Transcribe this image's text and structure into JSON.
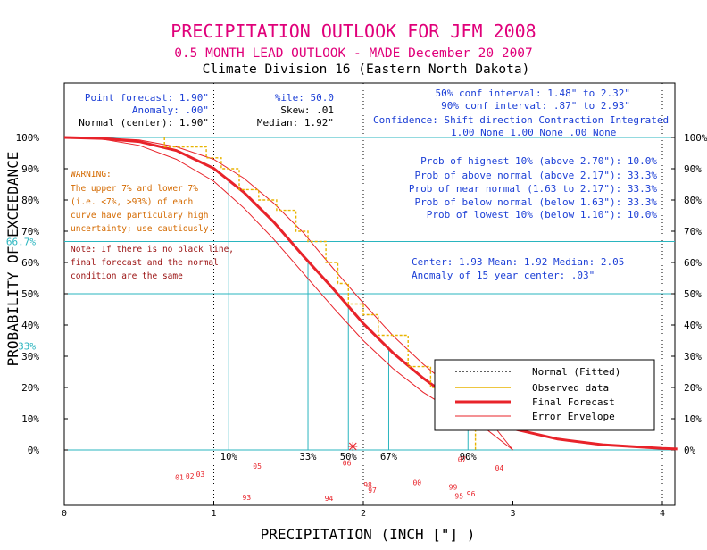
{
  "header": {
    "title": "PRECIPITATION OUTLOOK FOR JFM 2008",
    "subtitle": "0.5 MONTH LEAD OUTLOOK  - MADE December 20 2007",
    "division": "Climate Division 16 (Eastern North Dakota)"
  },
  "info": {
    "point_forecast": "Point forecast: 1.90\"",
    "anomaly": "Anomaly: .00\"",
    "normal_center": "Normal (center): 1.90\"",
    "ile": "%ile:  50.0",
    "skew": "Skew:    .01",
    "median": "Median: 1.92\"",
    "conf50": "50% conf interval: 1.48\" to 2.32\"",
    "conf90": "90% conf interval: .87\" to 2.93\"",
    "confidence_header": "Confidence: Shift direction   Contraction   Integrated",
    "confidence_values": "1.00 None          1.00 None      .00 None",
    "prob_highest": "Prob of highest 10% (above 2.70\"): 10.0%",
    "prob_above": "Prob of above normal (above 2.17\"): 33.3%",
    "prob_near": "Prob of near normal (1.63 to 2.17\"): 33.3%",
    "prob_below": "Prob of below normal (below 1.63\"): 33.3%",
    "prob_lowest": "Prob of lowest 10% (below 1.10\"): 10.0%",
    "center_line": "Center: 1.93  Mean: 1.92  Median: 2.05",
    "anomaly_center": "Anomaly of 15 year center:  .03\""
  },
  "warning": {
    "lines": [
      "WARNING:",
      "The upper 7% and lower 7%",
      "(i.e. <7%, >93%) of each",
      "curve have particulary high",
      "uncertainty; use cautiously."
    ]
  },
  "note": {
    "lines": [
      "Note: If there is no black line,",
      "final forecast and the normal",
      "condition are the same"
    ]
  },
  "legend": {
    "normal": "Normal (Fitted)",
    "observed": "Observed data",
    "final": "Final Forecast",
    "envelope": "Error Envelope"
  },
  "colors": {
    "title": "#e0007a",
    "info": "#1c3fd6",
    "warning": "#d46a00",
    "note": "#9a1010",
    "cyan": "#2ab5bf",
    "observed": "#e8b400",
    "forecast": "#e8232a",
    "envelope": "#e8232a",
    "years": "#e8232a"
  },
  "chart_data": {
    "type": "line",
    "xlabel": "PRECIPITATION (INCH [\"] )",
    "ylabel": "PROBABILITY OF EXCEEDANCE",
    "xlim": [
      0,
      4.1
    ],
    "ylim": [
      0,
      100
    ],
    "x_ticks": [
      0,
      1,
      2,
      3,
      4
    ],
    "y_ticks_left": [
      "0%",
      "10%",
      "20%",
      "30%",
      "40%",
      "50%",
      "60%",
      "70%",
      "80%",
      "90%",
      "100%"
    ],
    "y_ticks_right": [
      "0%",
      "10%",
      "20%",
      "30%",
      "40%",
      "50%",
      "60%",
      "70%",
      "80%",
      "90%",
      "100%"
    ],
    "special_y_labels": [
      {
        "label": "66.7%",
        "y": 66.7
      },
      {
        "label": "33%",
        "y": 33.3
      }
    ],
    "horizontal_ref_lines": [
      100,
      66.7,
      50,
      33.3,
      0
    ],
    "dotted_vertical_lines": [
      1,
      2,
      4
    ],
    "percentile_markers": [
      {
        "label": "10%",
        "x": 1.1
      },
      {
        "label": "33%",
        "x": 1.63
      },
      {
        "label": "50%",
        "x": 1.9
      },
      {
        "label": "67%",
        "x": 2.17
      },
      {
        "label": "90%",
        "x": 2.7
      }
    ],
    "median_star_x": 1.93,
    "series": [
      {
        "name": "Final Forecast",
        "x": [
          0,
          0.25,
          0.5,
          0.75,
          1.0,
          1.2,
          1.4,
          1.6,
          1.8,
          2.0,
          2.2,
          2.4,
          2.6,
          2.8,
          3.0,
          3.3,
          3.6,
          4.0,
          4.1
        ],
        "y": [
          100,
          99.7,
          98.7,
          95.8,
          90.1,
          82.5,
          73.0,
          62.0,
          51.5,
          40.5,
          31.0,
          23.0,
          16.0,
          10.5,
          6.8,
          3.5,
          1.7,
          0.5,
          0.3
        ]
      },
      {
        "name": "Error Envelope",
        "x": [
          0,
          0.25,
          0.5,
          0.75,
          1.0,
          1.2,
          1.4,
          1.6,
          1.8,
          2.0,
          2.2,
          2.4,
          2.6,
          2.8,
          3.0
        ],
        "y": [
          100,
          99.9,
          99.2,
          97.0,
          93.0,
          87.0,
          79.0,
          69.5,
          58.0,
          47.0,
          36.5,
          27.5,
          19.5,
          12.0,
          0
        ]
      },
      {
        "name": "Error Envelope",
        "x": [
          0,
          0.25,
          0.5,
          0.75,
          1.0,
          1.2,
          1.4,
          1.6,
          1.8,
          2.0,
          2.2,
          2.4,
          2.6,
          2.8,
          3.0
        ],
        "y": [
          100,
          99.5,
          97.5,
          93.0,
          86.0,
          77.5,
          67.5,
          56.5,
          45.5,
          35.0,
          26.0,
          18.5,
          12.5,
          7.5,
          0
        ]
      },
      {
        "name": "Observed data",
        "x": [
          0.67,
          0.67,
          0.95,
          0.95,
          1.05,
          1.05,
          1.17,
          1.17,
          1.3,
          1.3,
          1.42,
          1.42,
          1.55,
          1.55,
          1.63,
          1.63,
          1.75,
          1.75,
          1.83,
          1.83,
          1.9,
          1.9,
          2.0,
          2.0,
          2.1,
          2.1,
          2.3,
          2.3,
          2.45,
          2.45,
          2.55,
          2.55,
          2.62,
          2.62,
          2.7,
          2.7,
          2.75,
          2.75
        ],
        "y": [
          100,
          97,
          97,
          93.5,
          93.5,
          90,
          90,
          83.3,
          83.3,
          80,
          80,
          76.7,
          76.7,
          70,
          70,
          66.7,
          66.7,
          60,
          60,
          53.3,
          53.3,
          46.7,
          46.7,
          43.3,
          43.3,
          36.7,
          36.7,
          26.7,
          26.7,
          20,
          20,
          16.7,
          16.7,
          13.3,
          13.3,
          6.7,
          6.7,
          0
        ]
      }
    ],
    "year_labels": [
      {
        "label": "01",
        "x": 0.77,
        "y": -9.5
      },
      {
        "label": "02",
        "x": 0.84,
        "y": -9.2
      },
      {
        "label": "03",
        "x": 0.91,
        "y": -8.6
      },
      {
        "label": "05",
        "x": 1.29,
        "y": -6.0
      },
      {
        "label": "06",
        "x": 1.89,
        "y": -5.0
      },
      {
        "label": "07",
        "x": 2.66,
        "y": -3.8
      },
      {
        "label": "04",
        "x": 2.91,
        "y": -6.5
      },
      {
        "label": "98",
        "x": 2.03,
        "y": -12.0
      },
      {
        "label": "97",
        "x": 2.06,
        "y": -13.7
      },
      {
        "label": "00",
        "x": 2.36,
        "y": -11.3
      },
      {
        "label": "99",
        "x": 2.6,
        "y": -12.7
      },
      {
        "label": "95",
        "x": 2.64,
        "y": -15.6
      },
      {
        "label": "96",
        "x": 2.72,
        "y": -14.8
      },
      {
        "label": "93",
        "x": 1.22,
        "y": -16.0
      },
      {
        "label": "94",
        "x": 1.77,
        "y": -16.3
      }
    ]
  }
}
